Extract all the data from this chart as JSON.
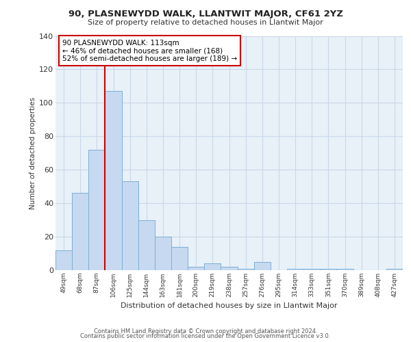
{
  "title": "90, PLASNEWYDD WALK, LLANTWIT MAJOR, CF61 2YZ",
  "subtitle": "Size of property relative to detached houses in Llantwit Major",
  "xlabel": "Distribution of detached houses by size in Llantwit Major",
  "ylabel": "Number of detached properties",
  "bar_labels": [
    "49sqm",
    "68sqm",
    "87sqm",
    "106sqm",
    "125sqm",
    "144sqm",
    "163sqm",
    "181sqm",
    "200sqm",
    "219sqm",
    "238sqm",
    "257sqm",
    "276sqm",
    "295sqm",
    "314sqm",
    "333sqm",
    "351sqm",
    "370sqm",
    "389sqm",
    "408sqm",
    "427sqm"
  ],
  "bar_values": [
    12,
    46,
    72,
    107,
    53,
    30,
    20,
    14,
    2,
    4,
    2,
    1,
    5,
    0,
    1,
    1,
    1,
    1,
    0,
    0,
    1
  ],
  "bar_color": "#c6d9f0",
  "bar_edge_color": "#7bafd4",
  "vline_color": "#cc0000",
  "annotation_text": "90 PLASNEWYDD WALK: 113sqm\n← 46% of detached houses are smaller (168)\n52% of semi-detached houses are larger (189) →",
  "annotation_box_edge": "#cc0000",
  "ylim": [
    0,
    140
  ],
  "yticks": [
    0,
    20,
    40,
    60,
    80,
    100,
    120,
    140
  ],
  "footer_line1": "Contains HM Land Registry data © Crown copyright and database right 2024.",
  "footer_line2": "Contains public sector information licensed under the Open Government Licence v3.0.",
  "background_color": "#e8f0f8",
  "grid_color": "#c8d8e8"
}
